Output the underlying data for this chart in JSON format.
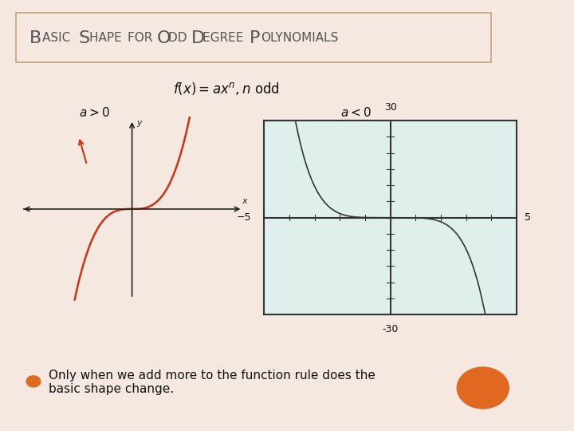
{
  "title": "Basic Shape for Odd Degree Polynomials",
  "formula": "$f(x) = ax^n, n$ odd",
  "label_a_pos": "$a > 0$",
  "label_a_neg": "$a < 0$",
  "bullet_text_line1": "Only when we add more to the function rule does the",
  "bullet_text_line2": "basic shape change.",
  "bg_color": "#ffffff",
  "slide_bg": "#f5e8e0",
  "title_box_color": "#c8a07a",
  "title_text_color": "#555555",
  "curve_color": "#cc3311",
  "graph2_bg": "#dff0ec",
  "graph2_border": "#333333",
  "bullet_color": "#e06820",
  "body_text_color": "#111111",
  "axis_color": "#222222",
  "right_border_color": "#e8c0a8"
}
